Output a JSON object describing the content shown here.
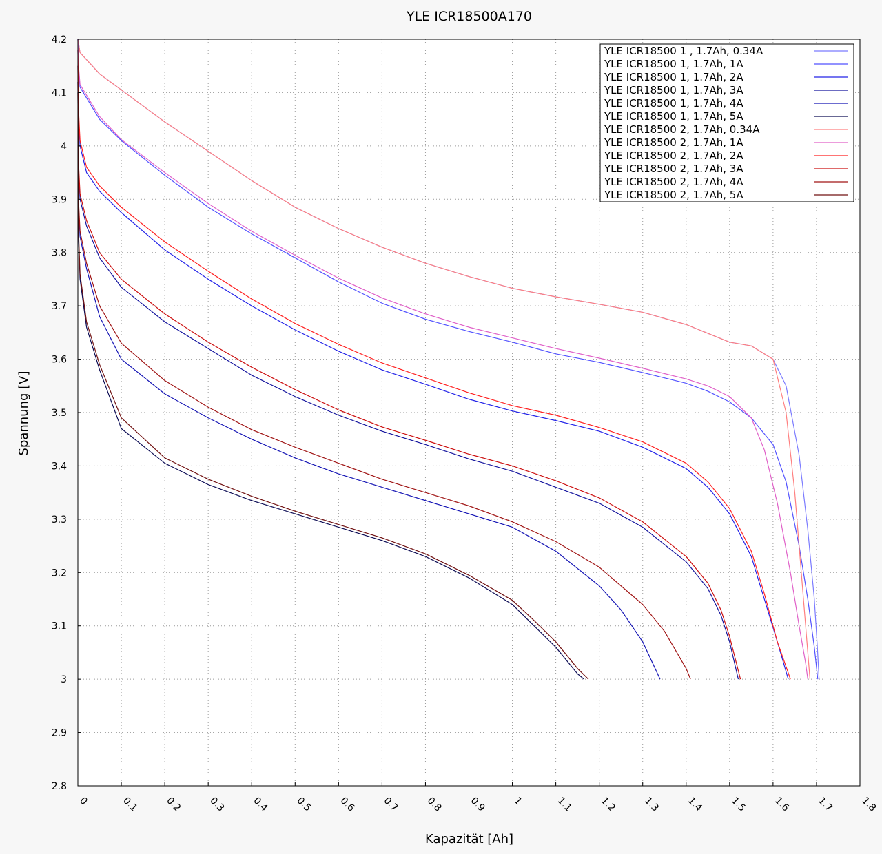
{
  "chart_data": {
    "type": "line",
    "title": "YLE  ICR18500A170",
    "xlabel": "Kapazität [Ah]",
    "ylabel": "Spannung [V]",
    "xlim": [
      0,
      1.8
    ],
    "ylim": [
      2.8,
      4.2
    ],
    "x_ticks": [
      "0",
      "0.1",
      "0.2",
      "0.3",
      "0.4",
      "0.5",
      "0.6",
      "0.7",
      "0.8",
      "0.9",
      "1",
      "1.1",
      "1.2",
      "1.3",
      "1.4",
      "1.5",
      "1.6",
      "1.7",
      "1.8"
    ],
    "y_ticks": [
      "2.8",
      "2.9",
      "3",
      "3.1",
      "3.2",
      "3.3",
      "3.4",
      "3.5",
      "3.6",
      "3.7",
      "3.8",
      "3.9",
      "4",
      "4.1",
      "4.2"
    ],
    "grid": true,
    "legend_position": "top-right",
    "series": [
      {
        "name": "YLE ICR18500 1 , 1.7Ah, 0.34A",
        "color": "#7b7bff",
        "points": [
          [
            0,
            4.2
          ],
          [
            0.002,
            4.19
          ],
          [
            0.005,
            4.175
          ],
          [
            0.05,
            4.135
          ],
          [
            0.1,
            4.105
          ],
          [
            0.2,
            4.045
          ],
          [
            0.3,
            3.99
          ],
          [
            0.4,
            3.935
          ],
          [
            0.5,
            3.885
          ],
          [
            0.6,
            3.845
          ],
          [
            0.7,
            3.81
          ],
          [
            0.8,
            3.78
          ],
          [
            0.9,
            3.755
          ],
          [
            1.0,
            3.733
          ],
          [
            1.1,
            3.717
          ],
          [
            1.2,
            3.703
          ],
          [
            1.3,
            3.688
          ],
          [
            1.4,
            3.665
          ],
          [
            1.5,
            3.632
          ],
          [
            1.55,
            3.625
          ],
          [
            1.6,
            3.6
          ],
          [
            1.63,
            3.55
          ],
          [
            1.66,
            3.42
          ],
          [
            1.68,
            3.28
          ],
          [
            1.695,
            3.15
          ],
          [
            1.702,
            3.06
          ],
          [
            1.706,
            3.0
          ]
        ]
      },
      {
        "name": "YLE ICR18500 1, 1.7Ah, 1A",
        "color": "#5252ff",
        "points": [
          [
            0,
            4.2
          ],
          [
            0.002,
            4.14
          ],
          [
            0.005,
            4.11
          ],
          [
            0.05,
            4.05
          ],
          [
            0.1,
            4.01
          ],
          [
            0.2,
            3.945
          ],
          [
            0.3,
            3.885
          ],
          [
            0.4,
            3.835
          ],
          [
            0.5,
            3.79
          ],
          [
            0.6,
            3.745
          ],
          [
            0.7,
            3.705
          ],
          [
            0.8,
            3.675
          ],
          [
            0.9,
            3.652
          ],
          [
            1.0,
            3.632
          ],
          [
            1.1,
            3.61
          ],
          [
            1.2,
            3.594
          ],
          [
            1.3,
            3.575
          ],
          [
            1.4,
            3.555
          ],
          [
            1.45,
            3.54
          ],
          [
            1.5,
            3.52
          ],
          [
            1.55,
            3.49
          ],
          [
            1.6,
            3.44
          ],
          [
            1.63,
            3.37
          ],
          [
            1.66,
            3.25
          ],
          [
            1.68,
            3.15
          ],
          [
            1.695,
            3.06
          ],
          [
            1.703,
            3.0
          ]
        ]
      },
      {
        "name": "YLE ICR18500 1, 1.7Ah, 2A",
        "color": "#2323e8",
        "points": [
          [
            0,
            4.18
          ],
          [
            0.002,
            4.05
          ],
          [
            0.005,
            4.0
          ],
          [
            0.02,
            3.95
          ],
          [
            0.05,
            3.915
          ],
          [
            0.1,
            3.875
          ],
          [
            0.2,
            3.805
          ],
          [
            0.3,
            3.75
          ],
          [
            0.4,
            3.7
          ],
          [
            0.5,
            3.655
          ],
          [
            0.6,
            3.615
          ],
          [
            0.7,
            3.58
          ],
          [
            0.8,
            3.553
          ],
          [
            0.9,
            3.525
          ],
          [
            1.0,
            3.503
          ],
          [
            1.1,
            3.485
          ],
          [
            1.2,
            3.465
          ],
          [
            1.3,
            3.435
          ],
          [
            1.4,
            3.395
          ],
          [
            1.45,
            3.36
          ],
          [
            1.5,
            3.31
          ],
          [
            1.55,
            3.23
          ],
          [
            1.58,
            3.15
          ],
          [
            1.61,
            3.07
          ],
          [
            1.635,
            3.0
          ]
        ]
      },
      {
        "name": "YLE ICR18500 1, 1.7Ah, 3A",
        "color": "#15159e",
        "points": [
          [
            0,
            4.15
          ],
          [
            0.002,
            3.95
          ],
          [
            0.005,
            3.9
          ],
          [
            0.02,
            3.85
          ],
          [
            0.05,
            3.79
          ],
          [
            0.1,
            3.735
          ],
          [
            0.2,
            3.67
          ],
          [
            0.3,
            3.62
          ],
          [
            0.4,
            3.57
          ],
          [
            0.5,
            3.53
          ],
          [
            0.6,
            3.495
          ],
          [
            0.7,
            3.465
          ],
          [
            0.8,
            3.44
          ],
          [
            0.9,
            3.413
          ],
          [
            1.0,
            3.39
          ],
          [
            1.1,
            3.36
          ],
          [
            1.2,
            3.33
          ],
          [
            1.3,
            3.285
          ],
          [
            1.4,
            3.22
          ],
          [
            1.45,
            3.17
          ],
          [
            1.48,
            3.12
          ],
          [
            1.5,
            3.07
          ],
          [
            1.52,
            3.0
          ]
        ]
      },
      {
        "name": "YLE ICR18500 1, 1.7Ah, 4A",
        "color": "#1414b4",
        "points": [
          [
            0,
            4.12
          ],
          [
            0.002,
            3.88
          ],
          [
            0.005,
            3.83
          ],
          [
            0.02,
            3.77
          ],
          [
            0.05,
            3.68
          ],
          [
            0.1,
            3.6
          ],
          [
            0.2,
            3.535
          ],
          [
            0.3,
            3.49
          ],
          [
            0.4,
            3.45
          ],
          [
            0.5,
            3.415
          ],
          [
            0.6,
            3.385
          ],
          [
            0.7,
            3.36
          ],
          [
            0.8,
            3.335
          ],
          [
            0.9,
            3.31
          ],
          [
            1.0,
            3.285
          ],
          [
            1.1,
            3.24
          ],
          [
            1.2,
            3.175
          ],
          [
            1.25,
            3.13
          ],
          [
            1.3,
            3.07
          ],
          [
            1.34,
            3.0
          ]
        ]
      },
      {
        "name": "YLE ICR18500 1, 1.7Ah, 5A",
        "color": "#0d0d55",
        "points": [
          [
            0,
            4.1
          ],
          [
            0.002,
            3.82
          ],
          [
            0.005,
            3.75
          ],
          [
            0.02,
            3.66
          ],
          [
            0.05,
            3.58
          ],
          [
            0.1,
            3.47
          ],
          [
            0.2,
            3.405
          ],
          [
            0.3,
            3.365
          ],
          [
            0.4,
            3.335
          ],
          [
            0.5,
            3.31
          ],
          [
            0.6,
            3.285
          ],
          [
            0.7,
            3.26
          ],
          [
            0.8,
            3.23
          ],
          [
            0.9,
            3.19
          ],
          [
            1.0,
            3.14
          ],
          [
            1.05,
            3.1
          ],
          [
            1.1,
            3.06
          ],
          [
            1.15,
            3.01
          ],
          [
            1.165,
            3.0
          ]
        ]
      },
      {
        "name": "YLE ICR18500 2, 1.7Ah, 0.34A",
        "color": "#ff8080",
        "points": [
          [
            0,
            4.2
          ],
          [
            0.002,
            4.19
          ],
          [
            0.005,
            4.175
          ],
          [
            0.05,
            4.135
          ],
          [
            0.1,
            4.105
          ],
          [
            0.2,
            4.045
          ],
          [
            0.3,
            3.99
          ],
          [
            0.4,
            3.935
          ],
          [
            0.5,
            3.885
          ],
          [
            0.6,
            3.845
          ],
          [
            0.7,
            3.81
          ],
          [
            0.8,
            3.78
          ],
          [
            0.9,
            3.755
          ],
          [
            1.0,
            3.733
          ],
          [
            1.1,
            3.717
          ],
          [
            1.2,
            3.703
          ],
          [
            1.3,
            3.688
          ],
          [
            1.4,
            3.665
          ],
          [
            1.5,
            3.632
          ],
          [
            1.55,
            3.625
          ],
          [
            1.6,
            3.6
          ],
          [
            1.63,
            3.5
          ],
          [
            1.65,
            3.35
          ],
          [
            1.665,
            3.2
          ],
          [
            1.678,
            3.07
          ],
          [
            1.685,
            3.0
          ]
        ]
      },
      {
        "name": "YLE ICR18500 2, 1.7Ah, 1A",
        "color": "#e060c8",
        "points": [
          [
            0,
            4.2
          ],
          [
            0.002,
            4.145
          ],
          [
            0.005,
            4.115
          ],
          [
            0.05,
            4.055
          ],
          [
            0.1,
            4.012
          ],
          [
            0.2,
            3.95
          ],
          [
            0.3,
            3.892
          ],
          [
            0.4,
            3.84
          ],
          [
            0.5,
            3.795
          ],
          [
            0.6,
            3.752
          ],
          [
            0.7,
            3.715
          ],
          [
            0.8,
            3.685
          ],
          [
            0.9,
            3.66
          ],
          [
            1.0,
            3.64
          ],
          [
            1.1,
            3.62
          ],
          [
            1.2,
            3.602
          ],
          [
            1.3,
            3.583
          ],
          [
            1.4,
            3.563
          ],
          [
            1.45,
            3.55
          ],
          [
            1.5,
            3.53
          ],
          [
            1.55,
            3.49
          ],
          [
            1.58,
            3.43
          ],
          [
            1.61,
            3.33
          ],
          [
            1.64,
            3.2
          ],
          [
            1.66,
            3.1
          ],
          [
            1.675,
            3.03
          ],
          [
            1.68,
            3.0
          ]
        ]
      },
      {
        "name": "YLE ICR18500 2, 1.7Ah, 2A",
        "color": "#ff2020",
        "points": [
          [
            0,
            4.18
          ],
          [
            0.002,
            4.06
          ],
          [
            0.005,
            4.01
          ],
          [
            0.02,
            3.96
          ],
          [
            0.05,
            3.925
          ],
          [
            0.1,
            3.885
          ],
          [
            0.2,
            3.82
          ],
          [
            0.3,
            3.765
          ],
          [
            0.4,
            3.713
          ],
          [
            0.5,
            3.667
          ],
          [
            0.6,
            3.628
          ],
          [
            0.7,
            3.593
          ],
          [
            0.8,
            3.565
          ],
          [
            0.9,
            3.537
          ],
          [
            1.0,
            3.513
          ],
          [
            1.1,
            3.495
          ],
          [
            1.2,
            3.472
          ],
          [
            1.3,
            3.445
          ],
          [
            1.4,
            3.405
          ],
          [
            1.45,
            3.37
          ],
          [
            1.5,
            3.32
          ],
          [
            1.55,
            3.24
          ],
          [
            1.58,
            3.16
          ],
          [
            1.61,
            3.07
          ],
          [
            1.64,
            3.0
          ]
        ]
      },
      {
        "name": "YLE ICR18500 2, 1.7Ah, 3A",
        "color": "#cc1010",
        "points": [
          [
            0,
            4.15
          ],
          [
            0.002,
            3.96
          ],
          [
            0.005,
            3.91
          ],
          [
            0.02,
            3.86
          ],
          [
            0.05,
            3.8
          ],
          [
            0.1,
            3.75
          ],
          [
            0.2,
            3.685
          ],
          [
            0.3,
            3.632
          ],
          [
            0.4,
            3.585
          ],
          [
            0.5,
            3.543
          ],
          [
            0.6,
            3.505
          ],
          [
            0.7,
            3.473
          ],
          [
            0.8,
            3.448
          ],
          [
            0.9,
            3.422
          ],
          [
            1.0,
            3.4
          ],
          [
            1.1,
            3.372
          ],
          [
            1.2,
            3.34
          ],
          [
            1.3,
            3.295
          ],
          [
            1.4,
            3.23
          ],
          [
            1.45,
            3.18
          ],
          [
            1.48,
            3.13
          ],
          [
            1.5,
            3.08
          ],
          [
            1.525,
            3.0
          ]
        ]
      },
      {
        "name": "YLE ICR18500 2, 1.7Ah, 4A",
        "color": "#a01515",
        "points": [
          [
            0,
            4.12
          ],
          [
            0.002,
            3.89
          ],
          [
            0.005,
            3.84
          ],
          [
            0.02,
            3.78
          ],
          [
            0.05,
            3.7
          ],
          [
            0.1,
            3.63
          ],
          [
            0.2,
            3.56
          ],
          [
            0.3,
            3.51
          ],
          [
            0.4,
            3.468
          ],
          [
            0.5,
            3.435
          ],
          [
            0.6,
            3.405
          ],
          [
            0.7,
            3.375
          ],
          [
            0.8,
            3.35
          ],
          [
            0.9,
            3.325
          ],
          [
            1.0,
            3.295
          ],
          [
            1.1,
            3.258
          ],
          [
            1.2,
            3.21
          ],
          [
            1.3,
            3.14
          ],
          [
            1.35,
            3.09
          ],
          [
            1.4,
            3.02
          ],
          [
            1.41,
            3.0
          ]
        ]
      },
      {
        "name": "YLE ICR18500 2, 1.7Ah, 5A",
        "color": "#701010",
        "points": [
          [
            0,
            4.1
          ],
          [
            0.002,
            3.83
          ],
          [
            0.005,
            3.76
          ],
          [
            0.02,
            3.67
          ],
          [
            0.05,
            3.59
          ],
          [
            0.1,
            3.49
          ],
          [
            0.2,
            3.415
          ],
          [
            0.3,
            3.375
          ],
          [
            0.4,
            3.343
          ],
          [
            0.5,
            3.315
          ],
          [
            0.6,
            3.29
          ],
          [
            0.7,
            3.265
          ],
          [
            0.8,
            3.235
          ],
          [
            0.9,
            3.195
          ],
          [
            1.0,
            3.148
          ],
          [
            1.05,
            3.11
          ],
          [
            1.1,
            3.07
          ],
          [
            1.15,
            3.02
          ],
          [
            1.175,
            3.0
          ]
        ]
      }
    ]
  }
}
